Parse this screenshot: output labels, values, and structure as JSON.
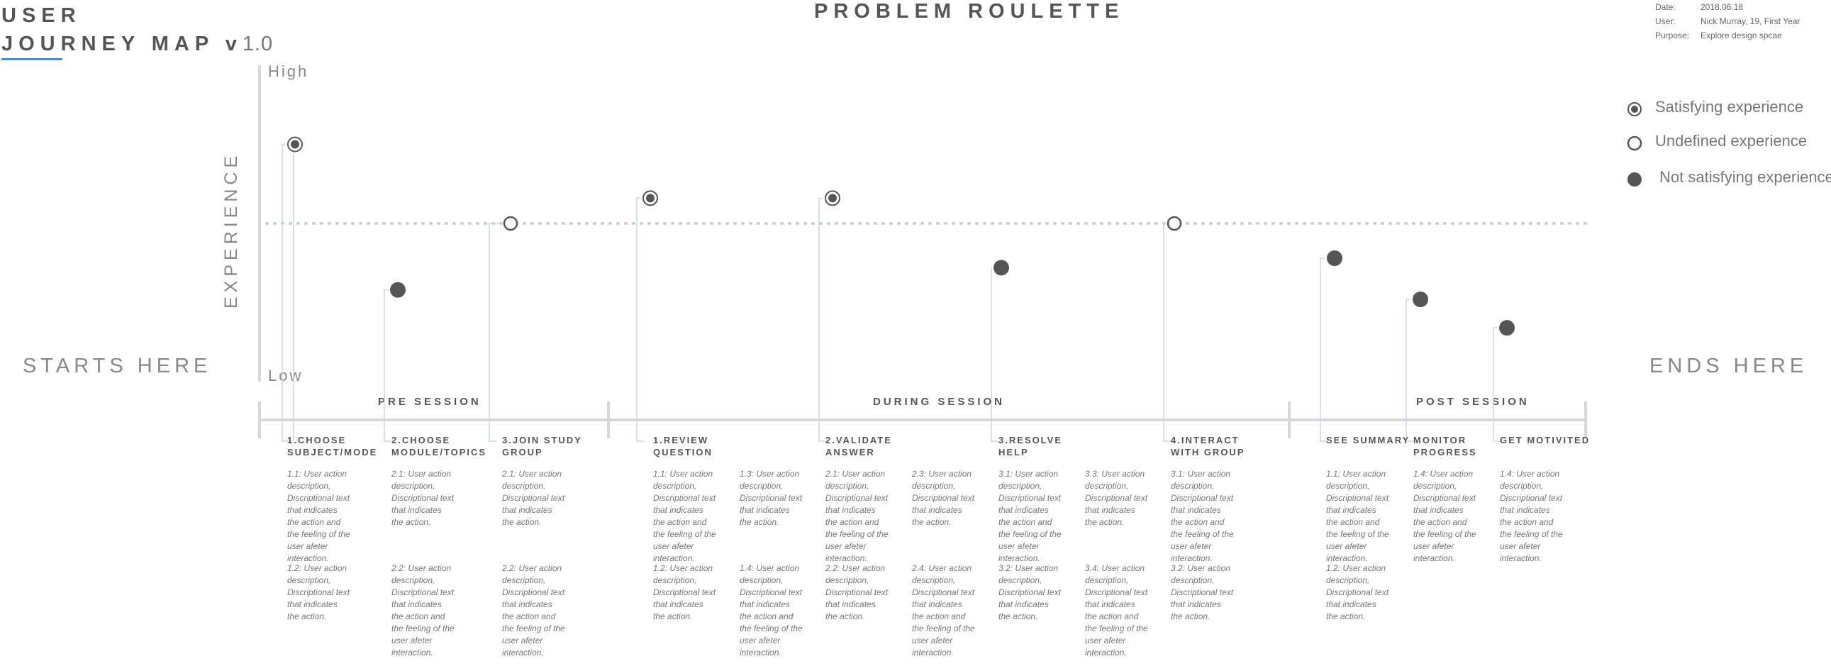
{
  "header": {
    "title_line1": "USER",
    "title_line2": "JOURNEY MAP v",
    "version": "1.0",
    "project_title": "PROBLEM ROULETTE",
    "meta": [
      {
        "key": "Date:",
        "value": "2018.06.18"
      },
      {
        "key": "User:",
        "value": "Nick Murray, 19, First Year"
      },
      {
        "key": "Purpose:",
        "value": "Explore design spcae"
      }
    ],
    "accent_color": "#3f8fd8"
  },
  "legend": [
    {
      "label": "Satisfying experience",
      "icon": "satisfying-marker-icon"
    },
    {
      "label": "Undefined experience",
      "icon": "undefined-marker-icon"
    },
    {
      "label": "Not satisfying experience",
      "icon": "not-satisfying-marker-icon"
    }
  ],
  "axis": {
    "label": "EXPERIENCE",
    "high": "High",
    "low": "Low"
  },
  "ends": {
    "start": "STARTS HERE",
    "end": "ENDS HERE"
  },
  "phases": [
    {
      "label": "PRE SESSION"
    },
    {
      "label": "DURING SESSION"
    },
    {
      "label": "POST SESSION"
    }
  ],
  "chart_data": {
    "type": "scatter",
    "scale": "High to Low (qualitative)",
    "baseline": "undefined experience (dotted line)",
    "points": [
      {
        "step": "1.CHOOSE SUBJECT/MODE",
        "experience": "satisfying",
        "level": 0.75
      },
      {
        "step": "2.CHOOSE MODULE/TOPICS",
        "experience": "not satisfying",
        "level": 0.29
      },
      {
        "step": "3.JOIN STUDY GROUP",
        "experience": "undefined",
        "level": 0.5
      },
      {
        "step": "1.REVIEW QUESTION",
        "experience": "satisfying",
        "level": 0.58
      },
      {
        "step": "2.VALIDATE ANSWER",
        "experience": "satisfying",
        "level": 0.58
      },
      {
        "step": "3.RESOLVE HELP",
        "experience": "not satisfying",
        "level": 0.36
      },
      {
        "step": "4.INTERACT WITH GROUP",
        "experience": "undefined",
        "level": 0.5
      },
      {
        "step": "SEE SUMMARY",
        "experience": "not satisfying",
        "level": 0.39
      },
      {
        "step": "MONITOR PROGRESS",
        "experience": "not satisfying",
        "level": 0.26
      },
      {
        "step": "GET MOTIVITED",
        "experience": "not satisfying",
        "level": 0.17
      }
    ],
    "colors": {
      "marker": "#555555",
      "connector": "#c8d6ea",
      "dotted": "#c8ccd6",
      "axis": "#d8d8d8"
    }
  },
  "steps": [
    {
      "title": "1.CHOOSE SUBJECT/MODE",
      "descs": [
        {
          "text": "1.1: User action description, Discriptional text that indicates the action and the feeling of the user afeter interaction."
        },
        {
          "text": "1.2: User action description, Discriptional text that indicates the action."
        }
      ]
    },
    {
      "title": "2.CHOOSE MODULE/TOPICS",
      "descs": [
        {
          "text": "2.1: User action description, Discriptional text that indicates the action."
        },
        {
          "text": "2.2: User action description, Discriptional text that indicates the action and the feeling of the user afeter interaction."
        }
      ]
    },
    {
      "title": "3.JOIN STUDY GROUP",
      "descs": [
        {
          "text": "2.1: User action description, Discriptional text that indicates the action."
        },
        {
          "text": "2.2: User action description, Discriptional text that indicates the action and the feeling of the user afeter interaction."
        }
      ]
    },
    {
      "title": "1.REVIEW QUESTION",
      "descs": [
        {
          "text": "1.1: User action description, Discriptional text that indicates the action and the feeling of the user afeter interaction."
        },
        {
          "text": "1.2: User action description, Discriptional text that indicates the action."
        },
        {
          "text": "1.3: User action description, Discriptional text that indicates the action."
        },
        {
          "text": "1.4: User action description, Discriptional text that indicates the action and the feeling of the user afeter interaction."
        }
      ]
    },
    {
      "title": "2.VALIDATE ANSWER",
      "descs": [
        {
          "text": "2.1: User action description, Discriptional text that indicates the action and the feeling of the user afeter interaction."
        },
        {
          "text": "2.2: User action description, Discriptional text that indicates the action."
        },
        {
          "text": "2.3: User action description, Discriptional text that indicates the action."
        },
        {
          "text": "2.4: User action description, Discriptional text that indicates the action and the feeling of the user afeter interaction."
        }
      ]
    },
    {
      "title": "3.RESOLVE HELP",
      "descs": [
        {
          "text": "3.1: User action description, Discriptional text that indicates the action and the feeling of the user afeter interaction."
        },
        {
          "text": "3.2: User action description, Discriptional text that indicates the action."
        },
        {
          "text": "3.3: User action description, Discriptional text that indicates the action."
        },
        {
          "text": "3.4: User action description, Discriptional text that indicates the action and the feeling of the user afeter interaction."
        }
      ]
    },
    {
      "title": "4.INTERACT WITH GROUP",
      "descs": [
        {
          "text": "3.1: User action description, Discriptional text that indicates the action and the feeling of the user afeter interaction."
        },
        {
          "text": "3.2: User action description, Discriptional text that indicates the action."
        }
      ]
    },
    {
      "title": "SEE SUMMARY",
      "descs": [
        {
          "text": "1.1: User action description, Discriptional text that indicates the action and the feeling of the user afeter interaction."
        },
        {
          "text": "1.2: User action description, Discriptional text that indicates the action."
        }
      ]
    },
    {
      "title": "MONITOR PROGRESS",
      "descs": [
        {
          "text": "1.4: User action description, Discriptional text that indicates the action and the feeling of the user afeter interaction."
        }
      ]
    },
    {
      "title": "GET MOTIVITED",
      "descs": [
        {
          "text": "1.4: User action description, Discriptional text that indicates the action and the feeling of the user afeter interaction."
        }
      ]
    }
  ]
}
